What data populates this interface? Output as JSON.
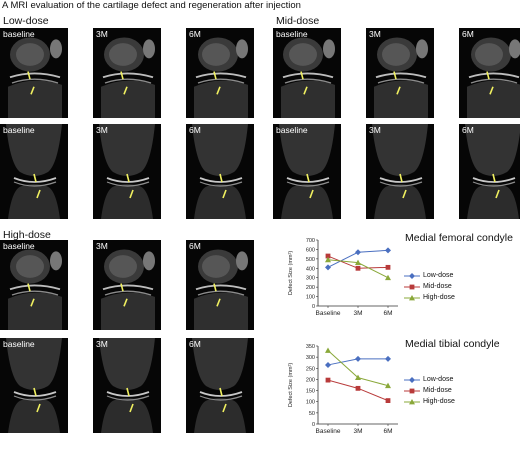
{
  "figure_title": "A  MRI evaluation of the cartilage defect and regeneration after injection",
  "groups": [
    {
      "label": "Low-dose",
      "rows": [
        [
          "baseline",
          "3M",
          "6M"
        ],
        [
          "baseline",
          "3M",
          "6M"
        ]
      ]
    },
    {
      "label": "Mid-dose",
      "rows": [
        [
          "baseline",
          "3M",
          "6M"
        ],
        [
          "baseline",
          "3M",
          "6M"
        ]
      ]
    },
    {
      "label": "High-dose",
      "rows": [
        [
          "baseline",
          "3M",
          "6M"
        ],
        [
          "baseline",
          "3M",
          "6M"
        ]
      ]
    }
  ],
  "colors": {
    "low": "#4a6fc0",
    "mid": "#b83a3a",
    "high": "#8aa83a",
    "marker": "#f0f060"
  },
  "chart_data": [
    {
      "type": "line",
      "title": "Medial femoral condyle",
      "ylabel": "Defect Size (mm²)",
      "categories": [
        "Baseline",
        "3M",
        "6M"
      ],
      "ylim": [
        0,
        700
      ],
      "yticks": [
        "0",
        "100",
        "200",
        "300",
        "400",
        "500",
        "600",
        "700"
      ],
      "series": [
        {
          "name": "Low-dose",
          "values": [
            410,
            570,
            590
          ]
        },
        {
          "name": "Mid-dose",
          "values": [
            530,
            400,
            410
          ]
        },
        {
          "name": "High-dose",
          "values": [
            490,
            460,
            300
          ]
        }
      ],
      "legend": "right"
    },
    {
      "type": "line",
      "title": "Medial tibial condyle",
      "ylabel": "Defect Size (mm²)",
      "categories": [
        "Baseline",
        "3M",
        "6M"
      ],
      "ylim": [
        0,
        350
      ],
      "yticks": [
        "0",
        "50",
        "100",
        "150",
        "200",
        "250",
        "300",
        "350"
      ],
      "series": [
        {
          "name": "Low-dose",
          "values": [
            265,
            292,
            292
          ]
        },
        {
          "name": "Mid-dose",
          "values": [
            197,
            160,
            105
          ]
        },
        {
          "name": "High-dose",
          "values": [
            330,
            208,
            172
          ]
        }
      ],
      "legend": "right"
    }
  ]
}
